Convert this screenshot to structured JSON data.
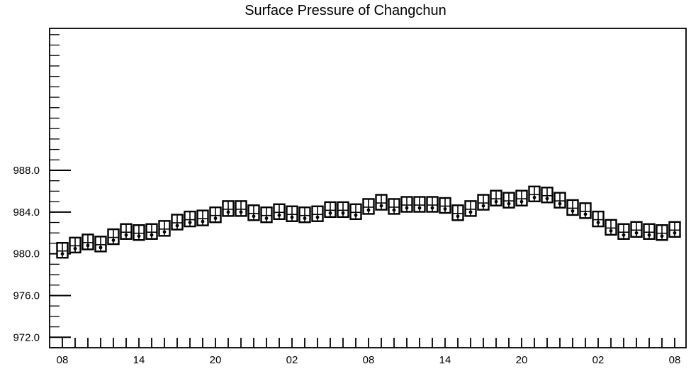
{
  "chart_data": {
    "type": "box",
    "title": "Surface Pressure of Changchun",
    "xlabel": "",
    "ylabel": "",
    "ylim": [
      971,
      1001.6
    ],
    "y_ticks": [
      "972.0",
      "976.0",
      "980.0",
      "984.0",
      "988.0"
    ],
    "x_tick_labels": [
      "08",
      "14",
      "20",
      "02",
      "08",
      "14",
      "20",
      "02",
      "08"
    ],
    "grid": false,
    "values": [
      80.2,
      80.7,
      81.0,
      80.8,
      81.5,
      82.0,
      81.9,
      82.0,
      82.3,
      82.9,
      83.2,
      83.3,
      83.6,
      84.2,
      84.2,
      83.8,
      83.6,
      83.9,
      83.7,
      83.6,
      83.7,
      84.1,
      84.1,
      83.9,
      84.4,
      84.8,
      84.4,
      84.6,
      84.6,
      84.6,
      84.5,
      83.8,
      84.2,
      84.8,
      85.2,
      85.0,
      85.2,
      85.6,
      85.5,
      85.0,
      84.3,
      84.0,
      83.2,
      82.4,
      82.0,
      82.2,
      82.0,
      81.9,
      82.2
    ],
    "value_offset": 900
  }
}
